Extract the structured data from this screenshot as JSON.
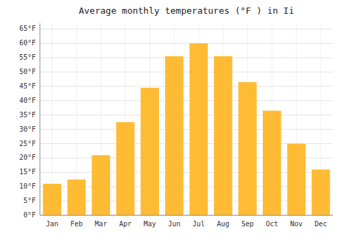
{
  "chart_data": {
    "type": "bar",
    "title": "Average monthly temperatures (°F ) in Ii",
    "categories": [
      "Jan",
      "Feb",
      "Mar",
      "Apr",
      "May",
      "Jun",
      "Jul",
      "Aug",
      "Sep",
      "Oct",
      "Nov",
      "Dec"
    ],
    "values": [
      11,
      12.5,
      21,
      32.5,
      44.5,
      55.5,
      60,
      55.5,
      46.5,
      36.5,
      25,
      16
    ],
    "color": "#FFBB33",
    "ylim": [
      0,
      67
    ],
    "yticks": [
      {
        "value": 0,
        "label": "0°F"
      },
      {
        "value": 5,
        "label": "5°F"
      },
      {
        "value": 10,
        "label": "10°F"
      },
      {
        "value": 15,
        "label": "15°F"
      },
      {
        "value": 20,
        "label": "20°F"
      },
      {
        "value": 25,
        "label": "25°F"
      },
      {
        "value": 30,
        "label": "30°F"
      },
      {
        "value": 35,
        "label": "35°F"
      },
      {
        "value": 40,
        "label": "40°F"
      },
      {
        "value": 45,
        "label": "45°F"
      },
      {
        "value": 50,
        "label": "50°F"
      },
      {
        "value": 55,
        "label": "55°F"
      },
      {
        "value": 60,
        "label": "60°F"
      },
      {
        "value": 65,
        "label": "65°F"
      }
    ],
    "grid": true
  }
}
